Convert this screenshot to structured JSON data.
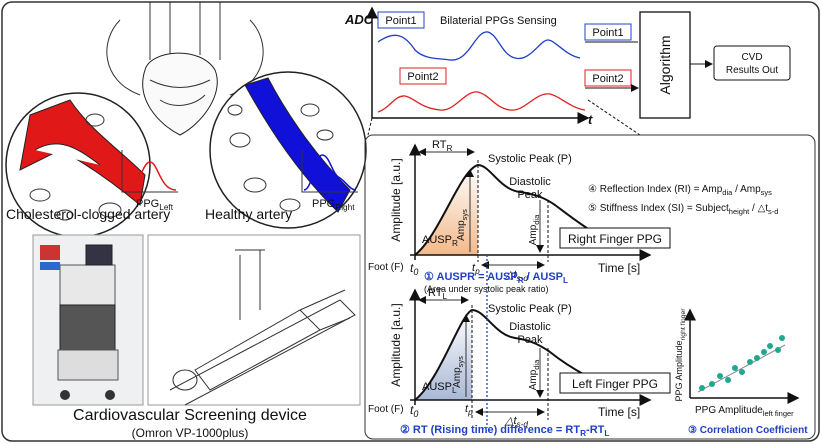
{
  "left": {
    "ppg_left": [
      "PPG",
      {
        "sub": "Left"
      }
    ],
    "ppg_right": [
      "PPG",
      {
        "sub": "Right"
      }
    ],
    "clogged_label": "Cholesterol-clogged artery",
    "healthy_label": "Healthy artery",
    "device_title": "Cardiovascular Screening device",
    "device_model": "(Omron VP-1000plus)"
  },
  "sensing": {
    "y_label": "ADC",
    "title": "Bilaterial PPGs Sensing",
    "point1": "Point1",
    "point2": "Point2",
    "x_label": "t"
  },
  "algorithm": {
    "input1": "Point1",
    "input2": "Point2",
    "label": "Algorithm",
    "output": [
      "CVD",
      "Results Out"
    ]
  },
  "analysis": {
    "right_plot": {
      "rt": [
        "RT",
        {
          "sub": "R"
        }
      ],
      "systolic": "Systolic Peak (P)",
      "y_label": "Amplitude [a.u.]",
      "amp_sys": [
        "Amp",
        {
          "sub": "sys"
        }
      ],
      "ausp": [
        "AUSP",
        {
          "sub": "R"
        }
      ],
      "diastolic": [
        "Diastolic",
        "Peak"
      ],
      "amp_dia": [
        "Amp",
        {
          "sub": "dia"
        }
      ],
      "foot": "Foot (F)",
      "t0": [
        "t",
        {
          "sub": "0"
        }
      ],
      "tp": [
        "t",
        {
          "sub": "p"
        }
      ],
      "delta": [
        "△t",
        {
          "sub": "s-d"
        }
      ],
      "name": "Right Finger PPG",
      "x_label": "Time [s]"
    },
    "left_plot": {
      "rt": [
        "RT",
        {
          "sub": "L"
        }
      ],
      "systolic": "Systolic Peak (P)",
      "y_label": "Amplitude [a.u.]",
      "amp_sys": [
        "Amp",
        {
          "sub": "sys"
        }
      ],
      "ausp": [
        "AUSP",
        {
          "sub": "L"
        }
      ],
      "diastolic": [
        "Diastolic",
        "Peak"
      ],
      "amp_dia": [
        "Amp",
        {
          "sub": "dia"
        }
      ],
      "foot": "Foot (F)",
      "t0": [
        "t",
        {
          "sub": "0"
        }
      ],
      "tp": [
        "t",
        {
          "sub": "p"
        }
      ],
      "delta": [
        "△t",
        {
          "sub": "s-d"
        }
      ],
      "name": "Left Finger PPG",
      "x_label": "Time [s]"
    },
    "reflection_index": [
      "④ Reflection Index (RI) = Amp",
      {
        "sub": "dia"
      },
      " / Amp",
      {
        "sub": "sys"
      }
    ],
    "stiffness_index": [
      "⑤ Stiffness Index (SI) = Subject",
      {
        "sub": "height"
      },
      " / △t",
      {
        "sub": "s-d"
      }
    ],
    "auspr": [
      "① AUSPR = AUSP",
      {
        "sub": "R"
      },
      " / AUSP",
      {
        "sub": "L"
      }
    ],
    "auspr_note": "(Area under systolic peak ratio)",
    "rt_diff": [
      "② RT (Rising time) difference = RT",
      {
        "sub": "R"
      },
      "-RT",
      {
        "sub": "L"
      }
    ],
    "correlation": {
      "y_label": [
        "PPG Amplitude",
        {
          "sub": "right finger"
        }
      ],
      "x_label": [
        "PPG Amplitude",
        {
          "sub": "left finger"
        }
      ],
      "title": "③ Correlation Coefficient"
    }
  }
}
